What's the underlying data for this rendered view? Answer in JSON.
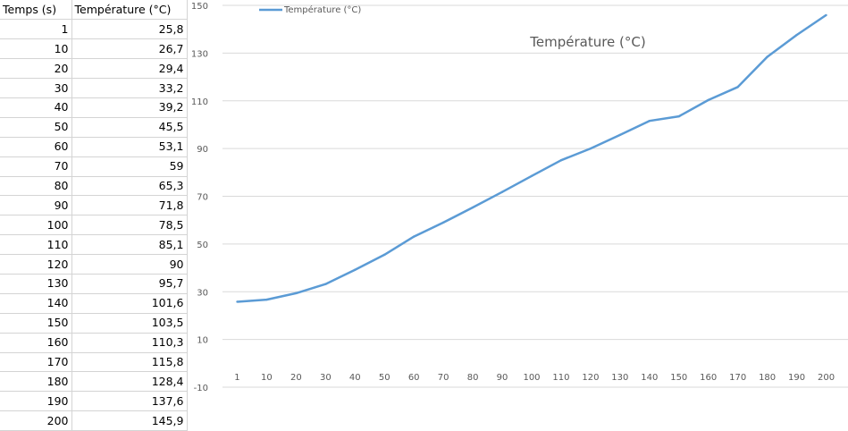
{
  "table": {
    "headers": [
      "Temps (s)",
      "Température (°C)"
    ],
    "rows": [
      [
        "1",
        "25,8"
      ],
      [
        "10",
        "26,7"
      ],
      [
        "20",
        "29,4"
      ],
      [
        "30",
        "33,2"
      ],
      [
        "40",
        "39,2"
      ],
      [
        "50",
        "45,5"
      ],
      [
        "60",
        "53,1"
      ],
      [
        "70",
        "59"
      ],
      [
        "80",
        "65,3"
      ],
      [
        "90",
        "71,8"
      ],
      [
        "100",
        "78,5"
      ],
      [
        "110",
        "85,1"
      ],
      [
        "120",
        "90"
      ],
      [
        "130",
        "95,7"
      ],
      [
        "140",
        "101,6"
      ],
      [
        "150",
        "103,5"
      ],
      [
        "160",
        "110,3"
      ],
      [
        "170",
        "115,8"
      ],
      [
        "180",
        "128,4"
      ],
      [
        "190",
        "137,6"
      ],
      [
        "200",
        "145,9"
      ]
    ]
  },
  "chart_data": {
    "type": "line",
    "title": "Température (°C)",
    "categories": [
      "1",
      "10",
      "20",
      "30",
      "40",
      "50",
      "60",
      "70",
      "80",
      "90",
      "100",
      "110",
      "120",
      "130",
      "140",
      "150",
      "160",
      "170",
      "180",
      "190",
      "200"
    ],
    "series": [
      {
        "name": "Température (°C)",
        "color": "#5b9bd5",
        "values": [
          25.8,
          26.7,
          29.4,
          33.2,
          39.2,
          45.5,
          53.1,
          59,
          65.3,
          71.8,
          78.5,
          85.1,
          90,
          95.7,
          101.6,
          103.5,
          110.3,
          115.8,
          128.4,
          137.6,
          145.9
        ]
      }
    ],
    "ylim": [
      -10,
      150
    ],
    "yticks": [
      -10,
      10,
      30,
      50,
      70,
      90,
      110,
      130,
      150
    ],
    "grid": true,
    "legend": "top-left"
  }
}
